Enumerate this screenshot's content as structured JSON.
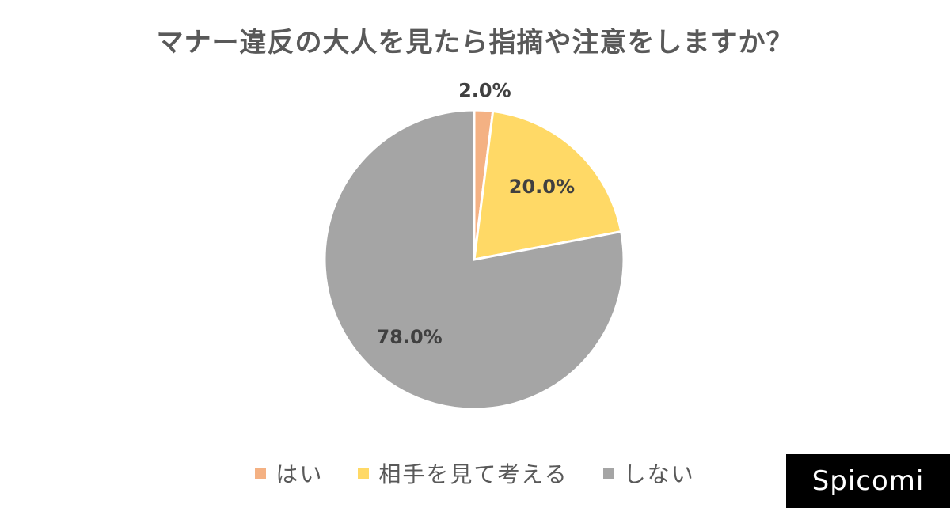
{
  "chart_data": {
    "type": "pie",
    "title": "マナー違反の大人を見たら指摘や注意をしますか？",
    "categories": [
      "はい",
      "相手を見て考える",
      "しない"
    ],
    "values": [
      2.0,
      20.0,
      78.0
    ],
    "data_labels": [
      "2.0%",
      "20.0%",
      "78.0%"
    ],
    "colors": [
      "#F4B183",
      "#FFD966",
      "#A5A5A5"
    ],
    "legend_position": "bottom"
  },
  "brand": {
    "text": "Spicomi"
  }
}
